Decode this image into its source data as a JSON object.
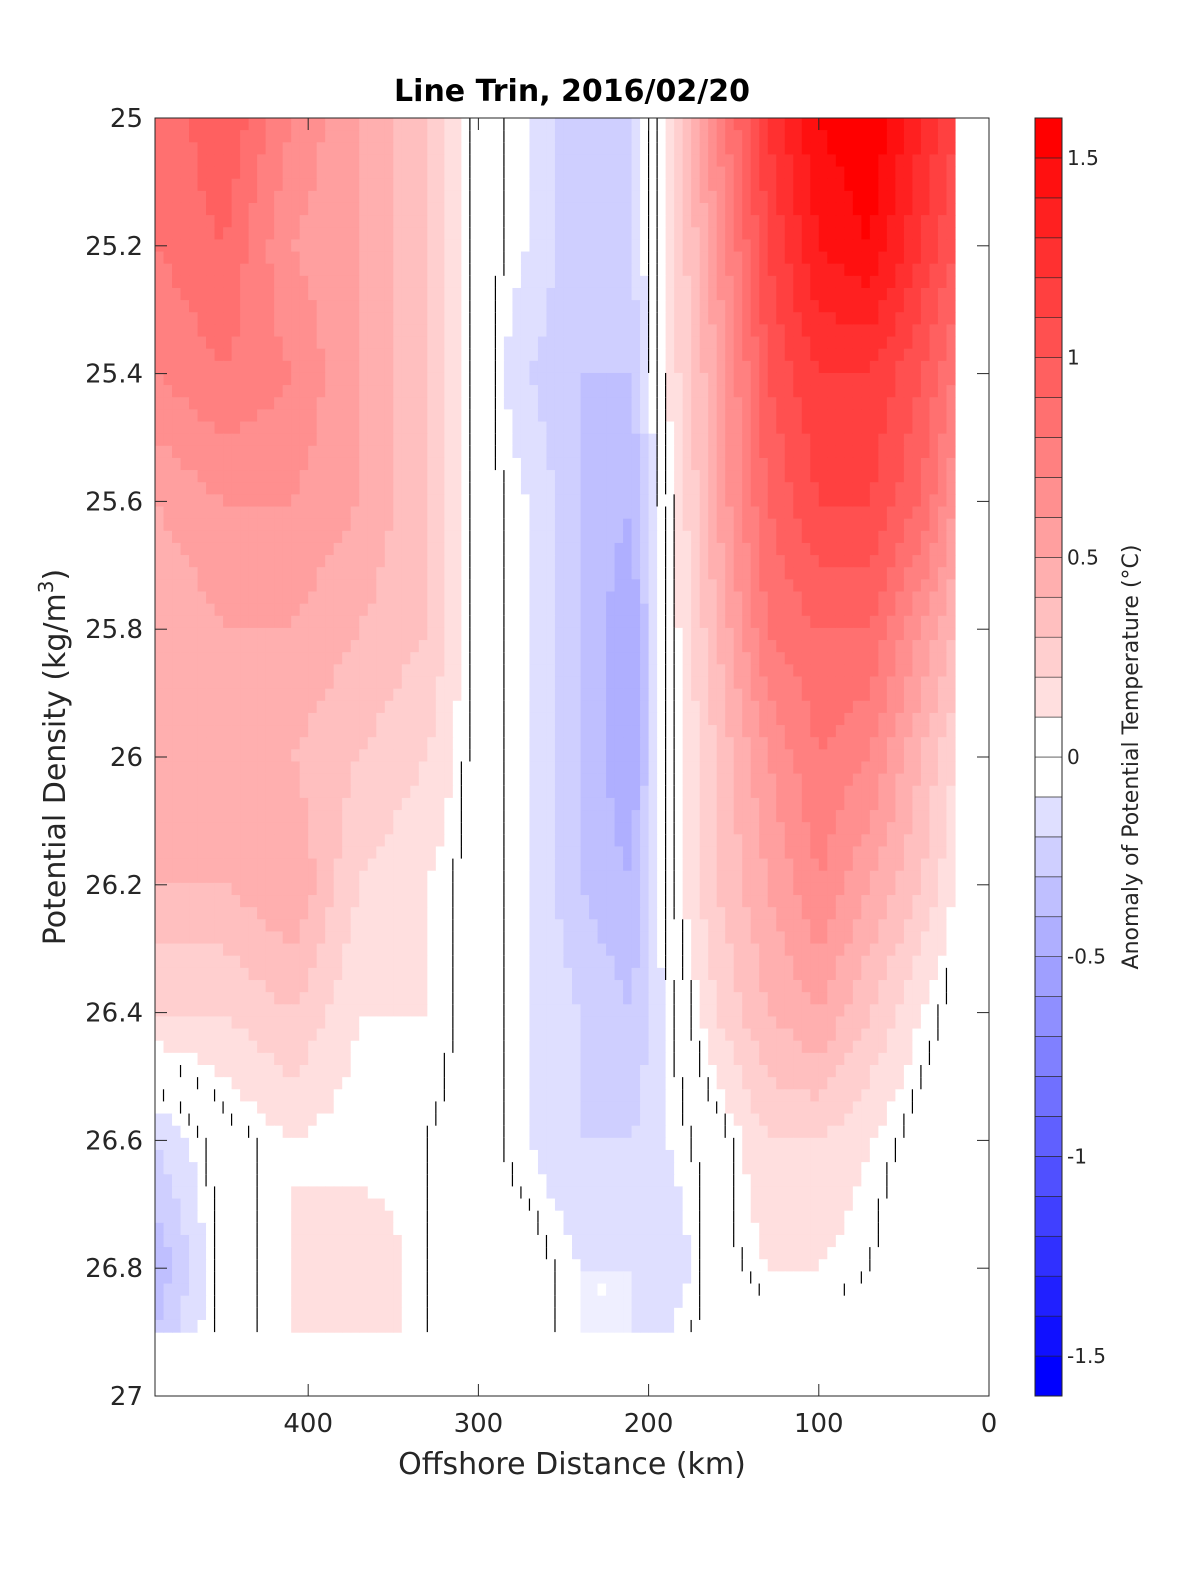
{
  "chart_data": {
    "type": "heatmap",
    "subtype": "filled contour section",
    "title": "Line Trin, 2016/02/20",
    "xlabel": "Offshore Distance (km)",
    "ylabel": "Potential Density (kg/m",
    "ylabel_superscript": "3",
    "ylabel_close": ")",
    "colorbar_label": "Anomaly of Potential Temperature (°C)",
    "x_axis": {
      "range": [
        490,
        0
      ],
      "reversed": true,
      "ticks": [
        400,
        300,
        200,
        100,
        0
      ]
    },
    "y_axis": {
      "range": [
        25,
        27
      ],
      "reversed": true,
      "ticks": [
        "25",
        "25.2",
        "25.4",
        "25.6",
        "25.8",
        "26",
        "26.2",
        "26.4",
        "26.6",
        "26.8",
        "27"
      ]
    },
    "colorbar": {
      "range": [
        -1.6,
        1.6
      ],
      "ticks": [
        {
          "value": 1.5,
          "label": "1.5"
        },
        {
          "value": 1,
          "label": "1"
        },
        {
          "value": 0.5,
          "label": "0.5"
        },
        {
          "value": 0,
          "label": "0"
        },
        {
          "value": -0.5,
          "label": "-0.5"
        },
        {
          "value": -1,
          "label": "-1"
        },
        {
          "value": -1.5,
          "label": "-1.5"
        }
      ],
      "levels_step": 0.1,
      "colormap": "diverging blue-white-red",
      "low_color": "#0000ff",
      "mid_color": "#ffffff",
      "high_color": "#ff0000"
    },
    "grid": false,
    "data_extent": {
      "x": [
        490,
        20
      ],
      "y": [
        25,
        26.9
      ]
    },
    "x_samples": [
      490,
      450,
      410,
      370,
      330,
      300,
      270,
      240,
      210,
      190,
      160,
      130,
      100,
      70,
      40,
      20
    ],
    "y_samples": [
      25.0,
      25.2,
      25.4,
      25.6,
      25.8,
      26.0,
      26.2,
      26.4,
      26.6,
      26.8,
      26.9
    ],
    "values": [
      [
        0.8,
        1.0,
        0.7,
        0.5,
        0.3,
        0.0,
        -0.1,
        -0.3,
        -0.2,
        0.1,
        0.7,
        1.2,
        1.5,
        1.6,
        1.3,
        1.1
      ],
      [
        0.8,
        0.9,
        0.6,
        0.5,
        0.3,
        0.0,
        -0.1,
        -0.3,
        -0.2,
        0.1,
        0.6,
        1.1,
        1.4,
        1.5,
        1.2,
        1.0
      ],
      [
        0.7,
        0.8,
        0.7,
        0.5,
        0.3,
        0.0,
        -0.2,
        -0.3,
        -0.3,
        0.1,
        0.5,
        1.0,
        1.2,
        1.2,
        1.0,
        0.8
      ],
      [
        0.5,
        0.6,
        0.6,
        0.5,
        0.3,
        0.0,
        -0.1,
        -0.3,
        -0.4,
        0.0,
        0.5,
        0.9,
        1.1,
        1.1,
        0.9,
        0.6
      ],
      [
        0.4,
        0.5,
        0.5,
        0.4,
        0.3,
        0.0,
        -0.1,
        -0.3,
        -0.5,
        0.0,
        0.4,
        0.8,
        0.9,
        0.9,
        0.6,
        0.4
      ],
      [
        0.4,
        0.5,
        0.4,
        0.3,
        0.2,
        0.0,
        -0.1,
        -0.3,
        -0.5,
        0.0,
        0.3,
        0.6,
        0.8,
        0.7,
        0.4,
        0.2
      ],
      [
        0.4,
        0.4,
        0.5,
        0.2,
        0.1,
        0.0,
        -0.1,
        -0.3,
        -0.4,
        0.0,
        0.3,
        0.5,
        0.7,
        0.5,
        0.3,
        0.1
      ],
      [
        0.2,
        0.2,
        0.3,
        0.1,
        0.1,
        0.0,
        -0.1,
        -0.2,
        -0.3,
        -0.1,
        0.2,
        0.4,
        0.5,
        0.3,
        0.1,
        0.0
      ],
      [
        -0.2,
        0.0,
        0.1,
        0.05,
        0.05,
        0.0,
        -0.1,
        -0.2,
        -0.2,
        -0.1,
        0.0,
        0.2,
        0.2,
        0.1,
        0.0,
        0.0
      ],
      [
        -0.4,
        0.0,
        0.1,
        0.2,
        0.05,
        0.0,
        0.0,
        -0.1,
        -0.1,
        -0.2,
        0.0,
        0.1,
        0.1,
        0.05,
        -0.05,
        0.0
      ],
      [
        -0.3,
        0.0,
        0.1,
        0.2,
        0.05,
        0.0,
        0.0,
        -0.1,
        -0.1,
        -0.1,
        0.0,
        0.0,
        0.0,
        0.0,
        0.0,
        0.0
      ]
    ]
  }
}
